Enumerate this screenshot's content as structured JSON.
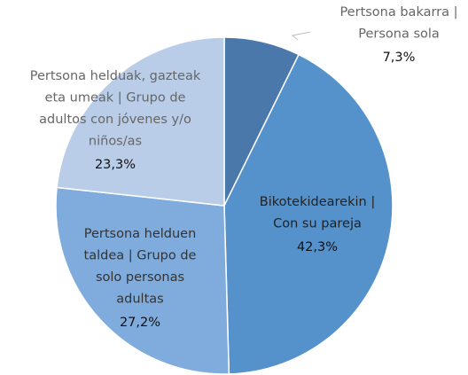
{
  "chart_data": {
    "type": "pie",
    "categories": [
      "Pertsona bakarra |\nPersona sola",
      "Bikotekidearekin |\nCon su pareja",
      "Pertsona helduen\ntaldea | Grupo de\nsolo personas\nadultas",
      "Pertsona helduak, gazteak\neta umeak | Grupo de\nadultos con jóvenes y/o\nniños/as"
    ],
    "values": [
      7.3,
      42.3,
      27.2,
      23.3
    ],
    "value_labels": [
      "7,3%",
      "42,3%",
      "27,2%",
      "23,3%"
    ],
    "colors": [
      "#4a78ab",
      "#5592cc",
      "#80acdd",
      "#b9cde9"
    ]
  }
}
